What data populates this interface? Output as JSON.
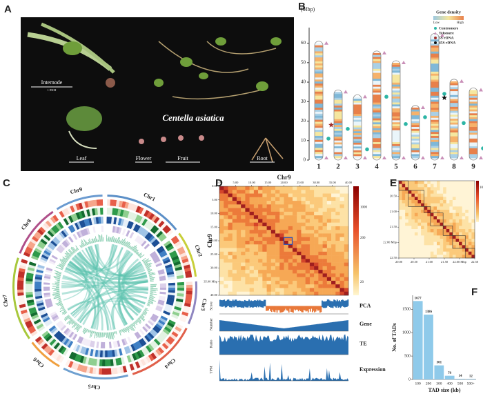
{
  "panel_labels": [
    "A",
    "B",
    "C",
    "D",
    "E",
    "F"
  ],
  "photo": {
    "species": "Centella asiatica",
    "labels": [
      "Internode",
      "Leaf",
      "Flower",
      "Fruit",
      "Root"
    ],
    "scale_text": "1 INCH"
  },
  "chart_data": [
    {
      "type": "ideogram",
      "y_label": "(Mbp)",
      "categories": [
        "1",
        "2",
        "3",
        "4",
        "5",
        "6",
        "7",
        "8",
        "9"
      ],
      "lengths": [
        61,
        36,
        33.5,
        56,
        51,
        28,
        65,
        41.5,
        37
      ],
      "centromeres": [
        11,
        16,
        5.5,
        32.5,
        18.5,
        22,
        34,
        19,
        6
      ],
      "centromere_color": "#2cb5a5",
      "telomere_color": "#c98fb8",
      "rdna_5s": {
        "category": "2",
        "value": 18,
        "color": "#a0302a"
      },
      "rdna_45s": {
        "category": "7",
        "value": 32,
        "color": "#111111"
      },
      "ylim": [
        0,
        68
      ],
      "yticks": [
        0,
        10,
        20,
        30,
        40,
        50,
        60
      ],
      "legend_title": "Gene density",
      "legend_low": "Low",
      "legend_high": "High",
      "legend_items": [
        "Centromere",
        "Telomere",
        "5S rDNA",
        "45S rDNA"
      ]
    },
    {
      "type": "circos",
      "labels": [
        "Chr1",
        "Chr2",
        "Chr3",
        "Chr4",
        "Chr5",
        "Chr6",
        "Chr7",
        "Chr8",
        "Chr9"
      ],
      "colors": [
        "#5b8fc7",
        "#c8cf3a",
        "#8f86c0",
        "#e0604a",
        "#6fa0d0",
        "#f0a040",
        "#a8c83c",
        "#b0508a",
        "#6a9ad0"
      ]
    },
    {
      "type": "heatmap",
      "title": "Chr9",
      "xlim": [
        0,
        40
      ],
      "xticks": [
        {
          "value": 0,
          "label": "0.00"
        },
        {
          "value": 5,
          "label": "5.00"
        },
        {
          "value": 10,
          "label": "10.00"
        },
        {
          "value": 15,
          "label": "15.00"
        },
        {
          "value": 20,
          "label": "20.00"
        },
        {
          "value": 25,
          "label": "25.00"
        },
        {
          "value": 30,
          "label": "30.00"
        },
        {
          "value": 35,
          "label": "35.00"
        },
        {
          "value": 40,
          "label": "40.00"
        }
      ],
      "ylim": [
        0,
        40
      ],
      "yticks": [
        {
          "value": 0,
          "label": "0.00"
        },
        {
          "value": 5,
          "label": "5.00"
        },
        {
          "value": 10,
          "label": "10.00"
        },
        {
          "value": 15,
          "label": "15.00"
        },
        {
          "value": 20,
          "label": "20.00"
        },
        {
          "value": 25,
          "label": "25.00"
        },
        {
          "value": 30,
          "label": "30.00"
        },
        {
          "value": 35,
          "label": "35.00 Mbp"
        },
        {
          "value": 40,
          "label": "40.00"
        }
      ],
      "colorbar_lim": [
        10,
        3000
      ],
      "colorbar_ticks": [
        20,
        200,
        1000
      ],
      "colorbar_scale": "log",
      "tracks": [
        {
          "name": "PCA",
          "y_label": "Score"
        },
        {
          "name": "Gene",
          "y_label": "Number"
        },
        {
          "name": "TE",
          "y_label": "Ratio"
        },
        {
          "name": "Expression",
          "y_label": "TPM"
        }
      ]
    },
    {
      "type": "heatmap",
      "xlim": [
        20,
        22.5
      ],
      "xticks": [
        {
          "value": 20,
          "label": "20.00"
        },
        {
          "value": 20.5,
          "label": "20.50"
        },
        {
          "value": 21,
          "label": "21.00"
        },
        {
          "value": 21.5,
          "label": "21.50"
        },
        {
          "value": 22,
          "label": "22.00 Mbp"
        },
        {
          "value": 22.5,
          "label": "22.50"
        }
      ],
      "ylim": [
        20,
        22.5
      ],
      "yticks": [
        {
          "value": 20,
          "label": "20.00"
        },
        {
          "value": 20.5,
          "label": "20.50"
        },
        {
          "value": 21,
          "label": "21.00"
        },
        {
          "value": 21.5,
          "label": "21.50"
        },
        {
          "value": 22,
          "label": "22.00 Mbp"
        },
        {
          "value": 22.5,
          "label": "22.50"
        }
      ],
      "colorbar_ticks": [
        10
      ]
    },
    {
      "type": "bar",
      "x_label": "TAD size (kb)",
      "y_label": "No. of TADs",
      "categories": [
        "100",
        "200",
        "300",
        "400",
        "500",
        "500+"
      ],
      "values": [
        1677,
        1386,
        301,
        79,
        14,
        12
      ],
      "color": "#8fcaea",
      "ylim": [
        0,
        1800
      ],
      "yticks": [
        0,
        500,
        1000,
        1500
      ]
    }
  ]
}
